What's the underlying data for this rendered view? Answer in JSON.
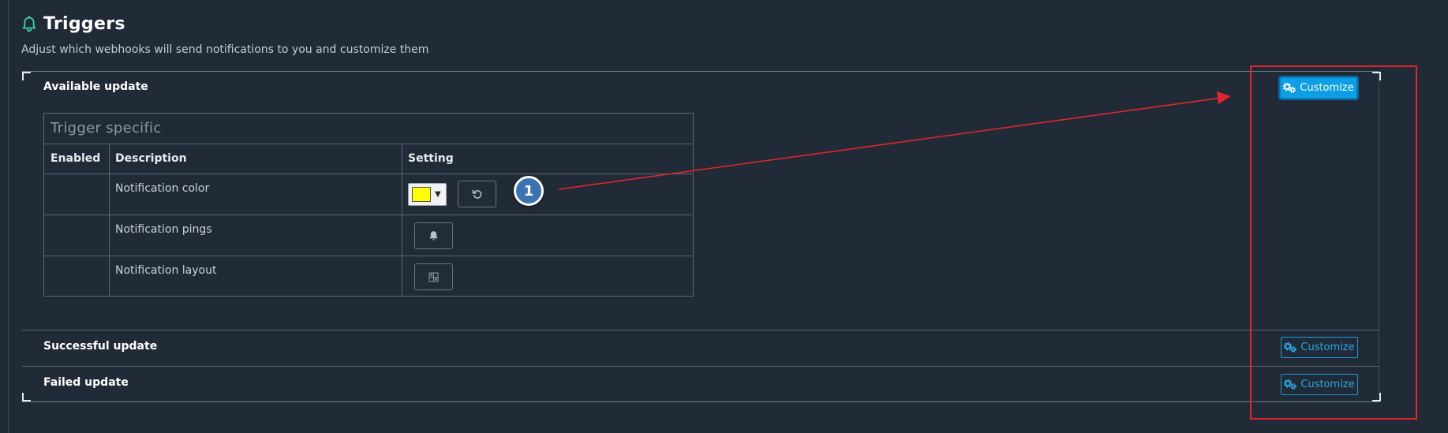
{
  "header": {
    "title": "Triggers",
    "subtitle": "Adjust which webhooks will send notifications to you and customize them"
  },
  "triggers": [
    {
      "label": "Available update",
      "customize_label": "Customize",
      "expanded": true
    },
    {
      "label": "Successful update",
      "customize_label": "Customize",
      "expanded": false
    },
    {
      "label": "Failed update",
      "customize_label": "Customize",
      "expanded": false
    }
  ],
  "trigger_specific": {
    "title": "Trigger specific",
    "columns": [
      "Enabled",
      "Description",
      "Setting"
    ],
    "rows": [
      {
        "description": "Notification color",
        "setting": "color-picker",
        "color": "#ffff00",
        "action_icon": "reset-icon"
      },
      {
        "description": "Notification pings",
        "setting": "button",
        "action_icon": "bell-icon"
      },
      {
        "description": "Notification layout",
        "setting": "button",
        "action_icon": "layout-grid-icon"
      }
    ]
  },
  "annotation": {
    "step": "1",
    "color": "#e0252b"
  },
  "colors": {
    "background": "#212b37",
    "accent": "#0d9ee8",
    "title_icon": "#39d3a6"
  }
}
